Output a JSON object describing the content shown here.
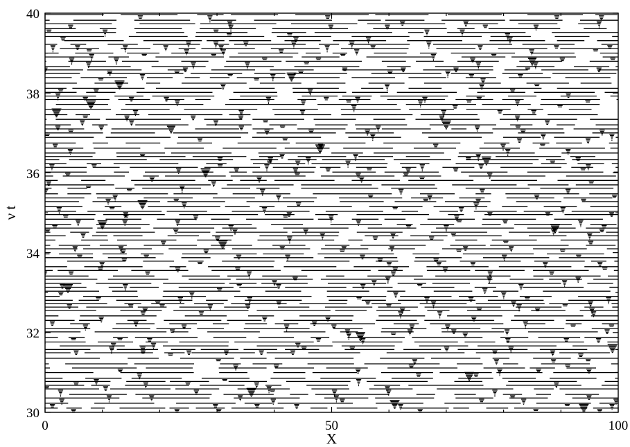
{
  "chart_data": {
    "type": "scatter",
    "title": "",
    "xlabel": "X",
    "ylabel": "ν t",
    "xlim": [
      0,
      100
    ],
    "ylim": [
      30,
      40
    ],
    "x_ticks": [
      0,
      50,
      100
    ],
    "y_ticks": [
      30,
      32,
      34,
      36,
      38,
      40
    ],
    "x_tick_labels": [
      "0",
      "50",
      "100"
    ],
    "y_tick_labels": [
      "30",
      "32",
      "34",
      "36",
      "38",
      "40"
    ],
    "grid": false,
    "legend": "none",
    "colors": {
      "marks": "#000000",
      "background": "#ffffff",
      "frame": "#000000"
    },
    "mark_style": "horizontal segments stacked into downward-pointing triangular clusters, filling the whole plot area",
    "series": [
      {
        "x": [
          2,
          4,
          8,
          10,
          13,
          17,
          22,
          28,
          31,
          36,
          43,
          48,
          55,
          61,
          70,
          74,
          77,
          85,
          89,
          94,
          99
        ],
        "y": [
          37.6,
          33.2,
          37.8,
          34.8,
          38.3,
          35.3,
          37.2,
          36.1,
          34.3,
          30.6,
          38.5,
          36.7,
          32.0,
          30.3,
          37.3,
          31.0,
          36.4,
          38.9,
          34.7,
          30.2,
          31.7
        ]
      }
    ]
  }
}
